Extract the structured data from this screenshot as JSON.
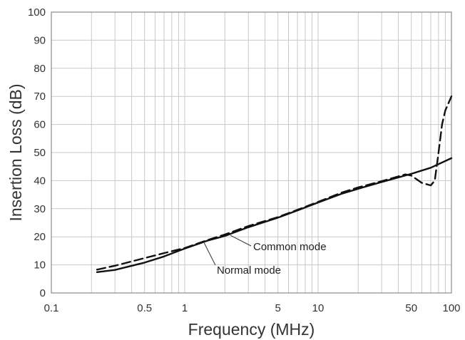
{
  "chart_data": {
    "type": "line",
    "title": "",
    "xlabel": "Frequency (MHz)",
    "ylabel": "Insertion Loss (dB)",
    "x_scale": "log",
    "xlim": [
      0.1,
      100
    ],
    "ylim": [
      0,
      100
    ],
    "x_ticks": [
      0.1,
      0.5,
      1,
      5,
      10,
      50,
      100
    ],
    "x_tick_labels": [
      "0.1",
      "0.5",
      "1",
      "5",
      "10",
      "50",
      "100"
    ],
    "y_ticks": [
      0,
      10,
      20,
      30,
      40,
      50,
      60,
      70,
      80,
      90,
      100
    ],
    "y_tick_labels": [
      "0",
      "10",
      "20",
      "30",
      "40",
      "50",
      "60",
      "70",
      "80",
      "90",
      "100"
    ],
    "grid": true,
    "legend": "none",
    "series": [
      {
        "name": "Normal mode",
        "style": "solid",
        "color": "#111111",
        "x": [
          0.22,
          0.3,
          0.5,
          0.7,
          1,
          1.5,
          2,
          3,
          5,
          7,
          10,
          15,
          20,
          30,
          50,
          70,
          100
        ],
        "y": [
          7.4,
          8.2,
          10.8,
          13,
          15.8,
          18.7,
          20.3,
          23.4,
          26.8,
          29.4,
          32.2,
          35.3,
          37.1,
          39.5,
          42.4,
          44.6,
          48
        ]
      },
      {
        "name": "Common mode",
        "style": "dashed",
        "color": "#111111",
        "x": [
          0.22,
          0.3,
          0.5,
          0.7,
          1,
          1.5,
          2,
          3,
          5,
          7,
          10,
          15,
          20,
          30,
          45,
          50,
          60,
          70,
          75,
          80,
          85,
          90,
          100
        ],
        "y": [
          8.3,
          9.7,
          12.4,
          14.2,
          16,
          18.9,
          20.8,
          23.8,
          27,
          29.6,
          32.4,
          35.7,
          37.6,
          39.8,
          42.2,
          41.8,
          39.2,
          38.3,
          40,
          50,
          60,
          65,
          70
        ]
      }
    ],
    "annotations": [
      {
        "text": "Common mode",
        "series": "Common mode",
        "x": 2.2,
        "y": 20.5
      },
      {
        "text": "Normal mode",
        "series": "Normal mode",
        "x": 1.4,
        "y": 17.8
      }
    ]
  }
}
